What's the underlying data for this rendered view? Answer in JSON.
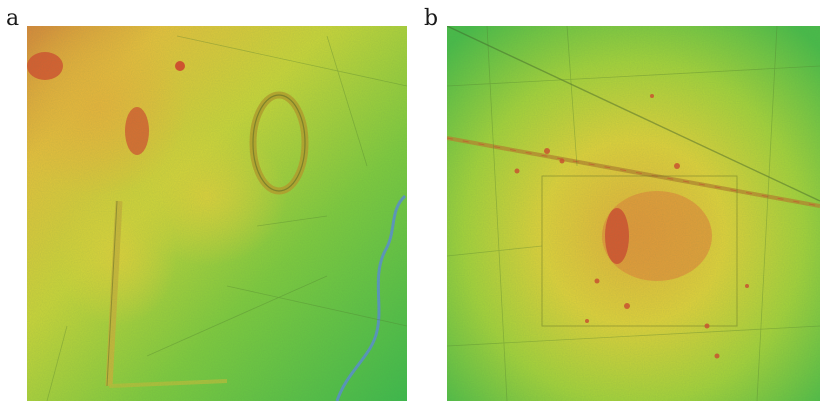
{
  "figure": {
    "panels": [
      {
        "label": "a"
      },
      {
        "label": "b"
      }
    ]
  },
  "colors": {
    "low": "#3fbf4a",
    "mid_low": "#9ad23a",
    "mid": "#e0d83a",
    "mid_high": "#e3a13a",
    "high": "#d0402e",
    "water": "#5a8fd6"
  }
}
